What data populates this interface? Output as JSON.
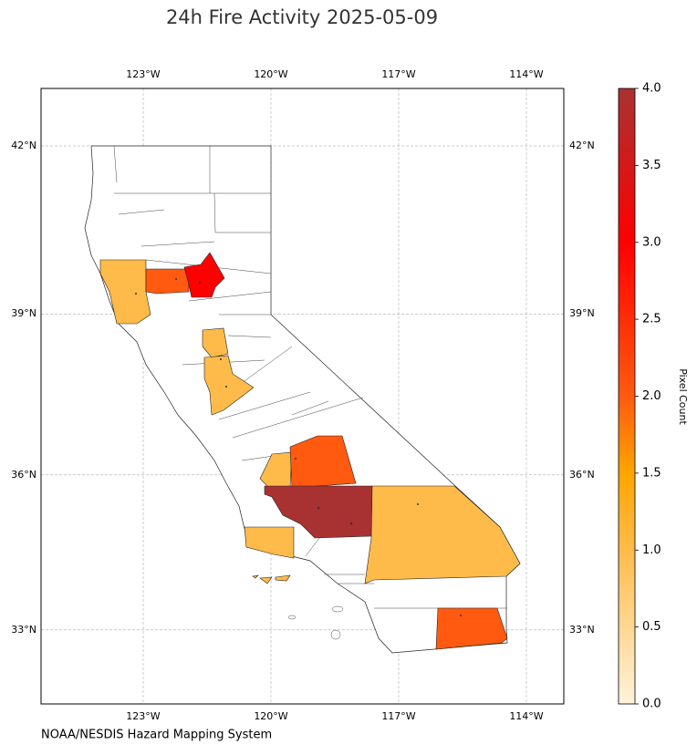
{
  "map": {
    "title": "24h Fire Activity 2025-05-09",
    "lon_ticks": [
      {
        "value": -123,
        "label": "123°W"
      },
      {
        "value": -120,
        "label": "120°W"
      },
      {
        "value": -117,
        "label": "117°W"
      },
      {
        "value": -114,
        "label": "114°W"
      }
    ],
    "lat_ticks": [
      {
        "value": 42,
        "label": "42°N"
      },
      {
        "value": 39,
        "label": "39°N"
      },
      {
        "value": 36,
        "label": "36°N"
      },
      {
        "value": 33,
        "label": "33°N"
      }
    ],
    "region_values": [
      1,
      2,
      3,
      1,
      1,
      1,
      2,
      4,
      1,
      1,
      1,
      2
    ],
    "colorbar": {
      "label": "Pixel Count",
      "lim": [
        0,
        4
      ],
      "ticks": [
        {
          "value": 0,
          "label": "0.0"
        },
        {
          "value": 0.5,
          "label": "0.5"
        },
        {
          "value": 1,
          "label": "1.0"
        },
        {
          "value": 1.5,
          "label": "1.5"
        },
        {
          "value": 2,
          "label": "2.0"
        },
        {
          "value": 2.5,
          "label": "2.5"
        },
        {
          "value": 3,
          "label": "3.0"
        },
        {
          "value": 3.5,
          "label": "3.5"
        },
        {
          "value": 4,
          "label": "4.0"
        }
      ]
    },
    "source": "NOAA/NESDIS Hazard Mapping System"
  }
}
